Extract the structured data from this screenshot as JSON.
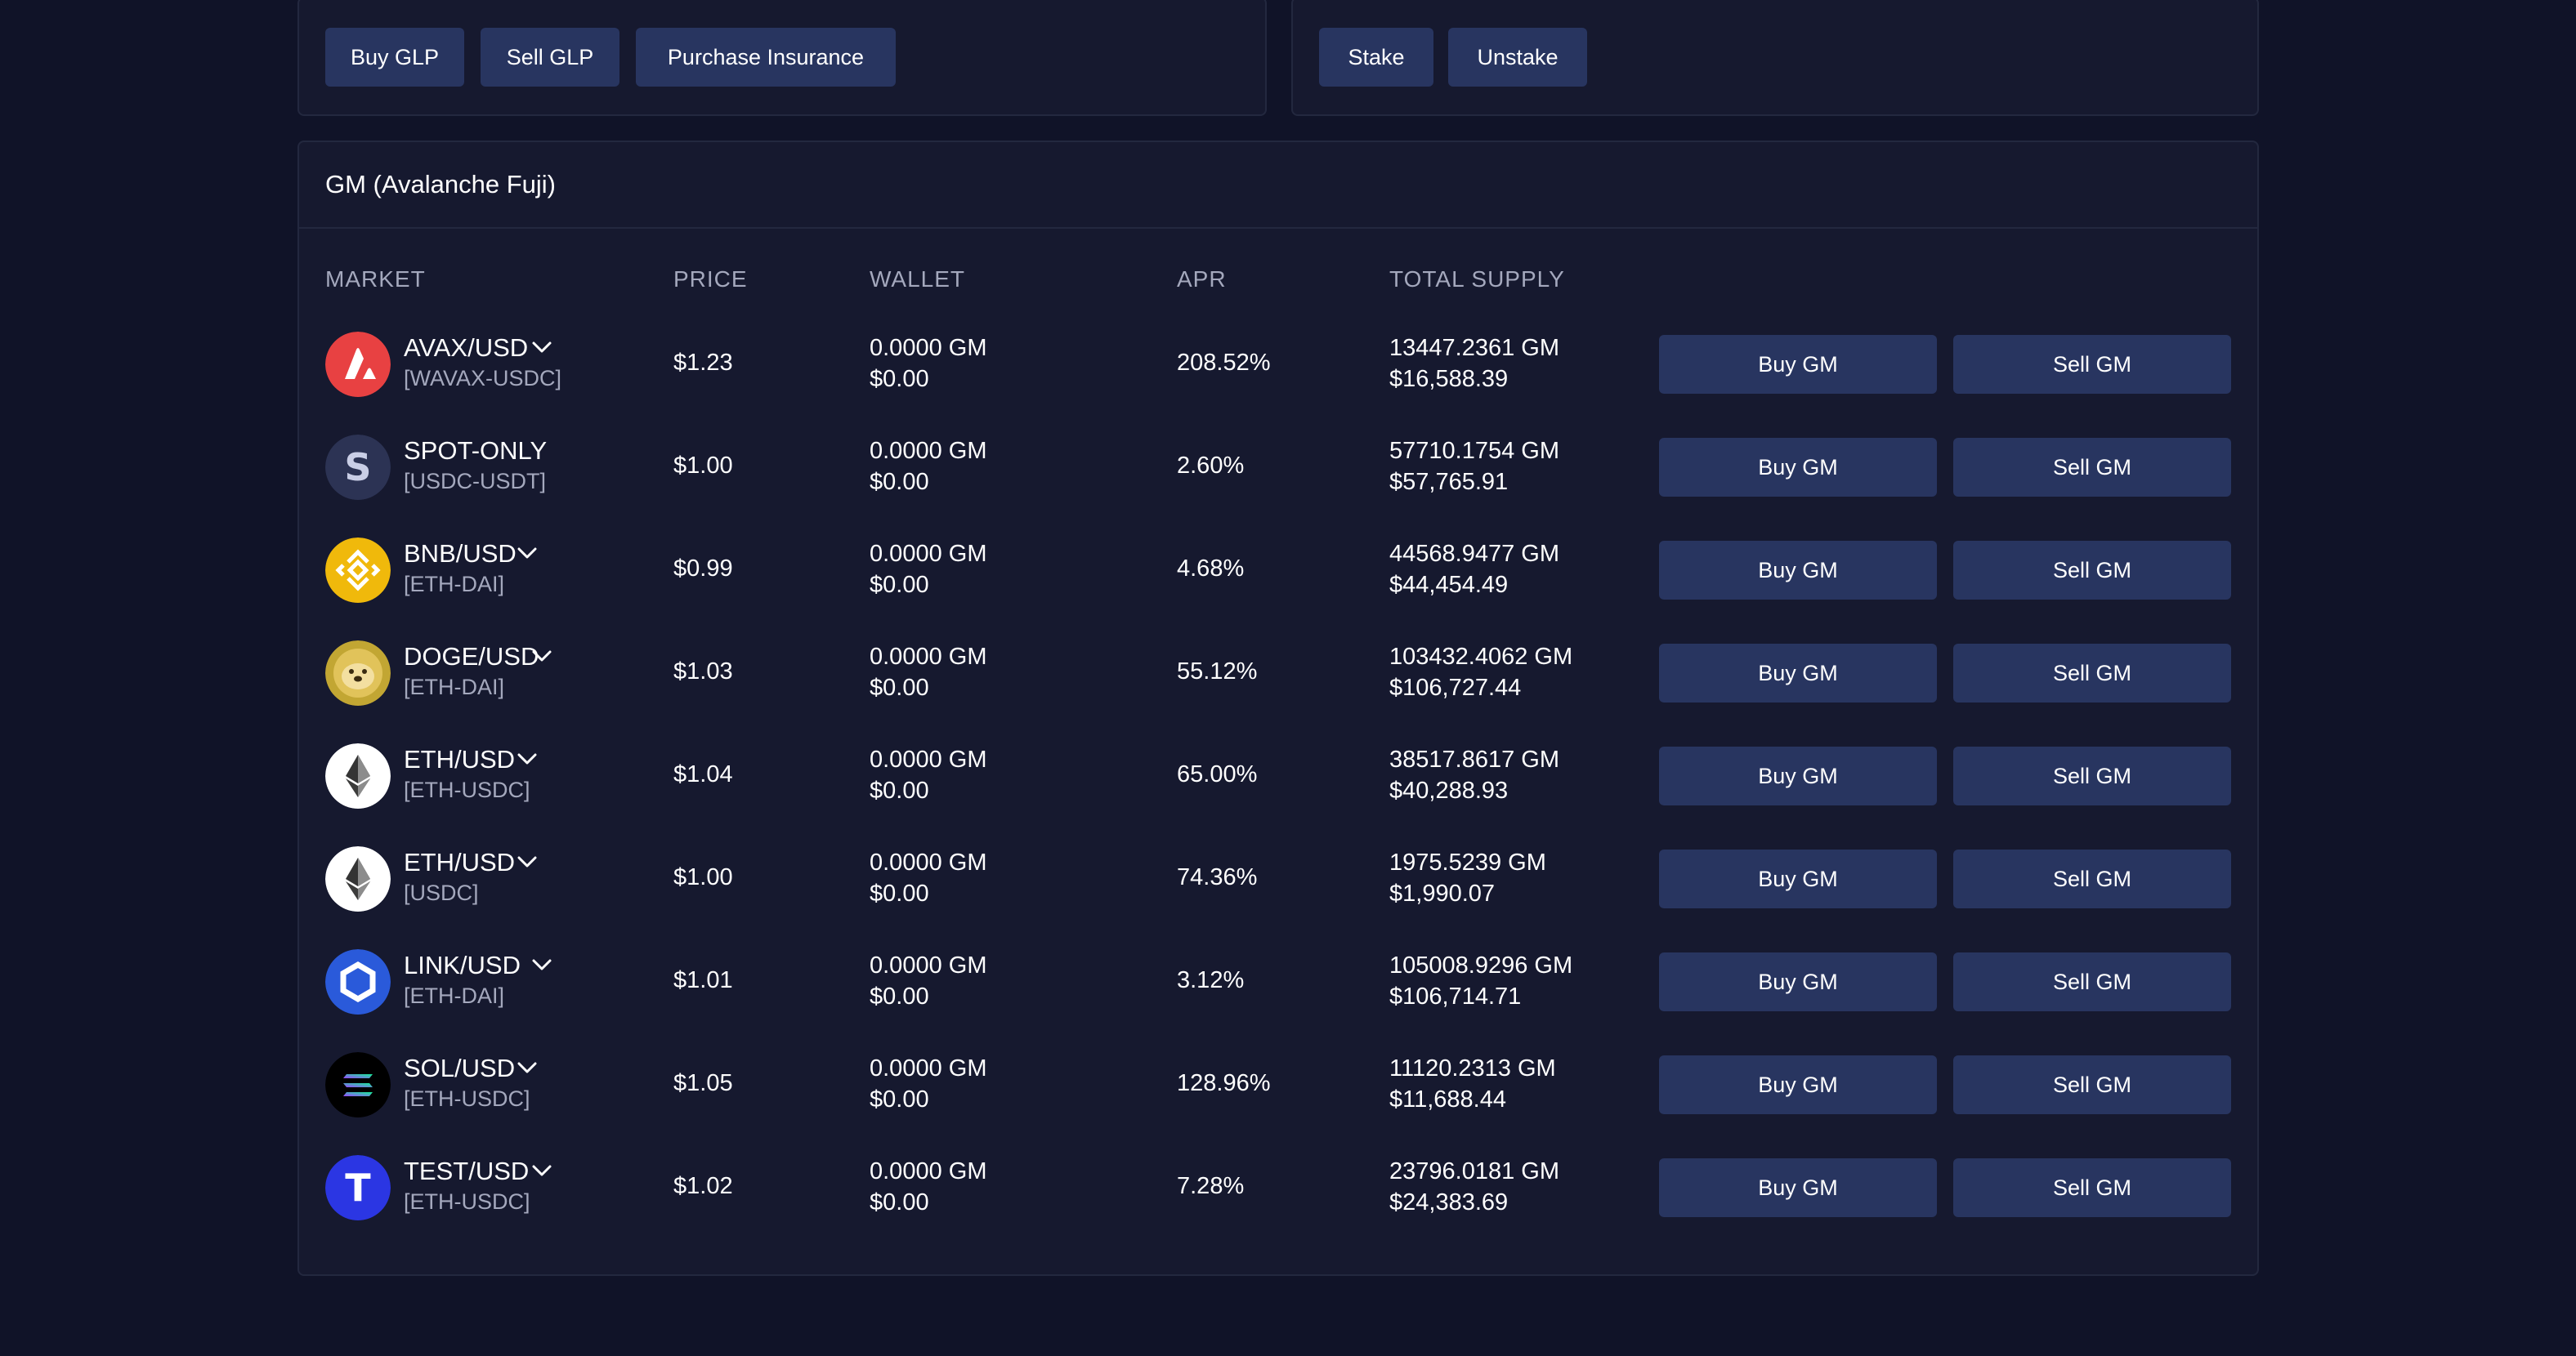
{
  "glp_actions": {
    "buy_label": "Buy GLP",
    "sell_label": "Sell GLP",
    "insurance_label": "Purchase Insurance"
  },
  "stake_actions": {
    "stake_label": "Stake",
    "unstake_label": "Unstake"
  },
  "gm": {
    "title": "GM (Avalanche Fuji)",
    "columns": {
      "market": "MARKET",
      "price": "PRICE",
      "wallet": "WALLET",
      "apr": "APR",
      "total_supply": "TOTAL SUPPLY"
    },
    "buy_label": "Buy GM",
    "sell_label": "Sell GM",
    "rows": [
      {
        "icon": "avax-icon",
        "name": "AVAX/USD",
        "pair": "[WAVAX-USDC]",
        "has_dropdown": true,
        "price": "$1.23",
        "wallet_amount": "0.0000 GM",
        "wallet_usd": "$0.00",
        "apr": "208.52%",
        "supply_amount": "13447.2361 GM",
        "supply_usd": "$16,588.39"
      },
      {
        "icon": "spot-icon",
        "name": "SPOT-ONLY",
        "pair": "[USDC-USDT]",
        "has_dropdown": false,
        "price": "$1.00",
        "wallet_amount": "0.0000 GM",
        "wallet_usd": "$0.00",
        "apr": "2.60%",
        "supply_amount": "57710.1754 GM",
        "supply_usd": "$57,765.91"
      },
      {
        "icon": "bnb-icon",
        "name": "BNB/USD",
        "pair": "[ETH-DAI]",
        "has_dropdown": true,
        "price": "$0.99",
        "wallet_amount": "0.0000 GM",
        "wallet_usd": "$0.00",
        "apr": "4.68%",
        "supply_amount": "44568.9477 GM",
        "supply_usd": "$44,454.49"
      },
      {
        "icon": "doge-icon",
        "name": "DOGE/USD",
        "pair": "[ETH-DAI]",
        "has_dropdown": true,
        "price": "$1.03",
        "wallet_amount": "0.0000 GM",
        "wallet_usd": "$0.00",
        "apr": "55.12%",
        "supply_amount": "103432.4062 GM",
        "supply_usd": "$106,727.44"
      },
      {
        "icon": "eth-icon",
        "name": "ETH/USD",
        "pair": "[ETH-USDC]",
        "has_dropdown": true,
        "price": "$1.04",
        "wallet_amount": "0.0000 GM",
        "wallet_usd": "$0.00",
        "apr": "65.00%",
        "supply_amount": "38517.8617 GM",
        "supply_usd": "$40,288.93"
      },
      {
        "icon": "eth-icon",
        "name": "ETH/USD",
        "pair": "[USDC]",
        "has_dropdown": true,
        "price": "$1.00",
        "wallet_amount": "0.0000 GM",
        "wallet_usd": "$0.00",
        "apr": "74.36%",
        "supply_amount": "1975.5239 GM",
        "supply_usd": "$1,990.07"
      },
      {
        "icon": "link-icon",
        "name": "LINK/USD",
        "pair": "[ETH-DAI]",
        "has_dropdown": true,
        "price": "$1.01",
        "wallet_amount": "0.0000 GM",
        "wallet_usd": "$0.00",
        "apr": "3.12%",
        "supply_amount": "105008.9296 GM",
        "supply_usd": "$106,714.71"
      },
      {
        "icon": "sol-icon",
        "name": "SOL/USD",
        "pair": "[ETH-USDC]",
        "has_dropdown": true,
        "price": "$1.05",
        "wallet_amount": "0.0000 GM",
        "wallet_usd": "$0.00",
        "apr": "128.96%",
        "supply_amount": "11120.2313 GM",
        "supply_usd": "$11,688.44"
      },
      {
        "icon": "test-icon",
        "name": "TEST/USD",
        "pair": "[ETH-USDC]",
        "has_dropdown": true,
        "price": "$1.02",
        "wallet_amount": "0.0000 GM",
        "wallet_usd": "$0.00",
        "apr": "7.28%",
        "supply_amount": "23796.0181 GM",
        "supply_usd": "$24,383.69"
      }
    ]
  }
}
